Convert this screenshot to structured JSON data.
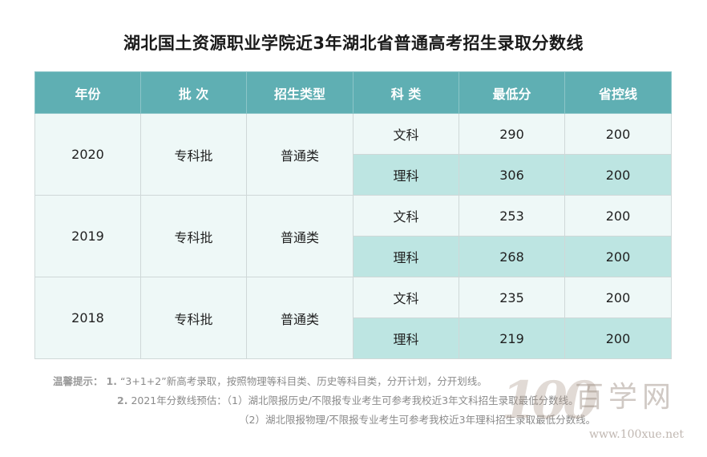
{
  "title": "湖北国土资源职业学院近3年湖北省普通高考招生录取分数线",
  "table": {
    "headers": [
      "年份",
      "批 次",
      "招生类型",
      "科 类",
      "最低分",
      "省控线"
    ],
    "groups": [
      {
        "year": "2020",
        "batch": "专科批",
        "type": "普通类",
        "rows": [
          {
            "subject": "文科",
            "min_score": "290",
            "control_line": "200"
          },
          {
            "subject": "理科",
            "min_score": "306",
            "control_line": "200"
          }
        ]
      },
      {
        "year": "2019",
        "batch": "专科批",
        "type": "普通类",
        "rows": [
          {
            "subject": "文科",
            "min_score": "253",
            "control_line": "200"
          },
          {
            "subject": "理科",
            "min_score": "268",
            "control_line": "200"
          }
        ]
      },
      {
        "year": "2018",
        "batch": "专科批",
        "type": "普通类",
        "rows": [
          {
            "subject": "文科",
            "min_score": "235",
            "control_line": "200"
          },
          {
            "subject": "理科",
            "min_score": "219",
            "control_line": "200"
          }
        ]
      }
    ]
  },
  "notes": {
    "lead": "温馨提示：",
    "items": [
      {
        "num": "1.",
        "text": "“3+1+2”新高考录取，按照物理等科目类、历史等科目类，分开计划，分开划线。"
      },
      {
        "num": "2.",
        "text": "2021年分数线预估：（1）湖北限报历史/不限报专业考生可参考我校近3年文科招生录取最低分数线。"
      },
      {
        "num": "",
        "text": "（2）湖北限报物理/不限报专业考生可参考我校近3年理科招生录取最低分数线。"
      }
    ]
  },
  "watermark": {
    "digits": "100",
    "name": "百学网",
    "url": "www.100xue.net"
  },
  "colors": {
    "header_bg": "#5fafb3",
    "row_light": "#eef8f7",
    "row_dark": "#bde5e2"
  }
}
